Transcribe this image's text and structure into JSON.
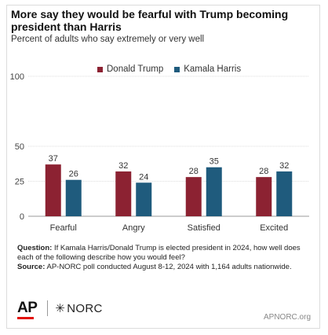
{
  "title": "More say they would be fearful with Trump becoming president than Harris",
  "subtitle": "Percent of adults who say extremely or very well",
  "footnote": {
    "question_label": "Question:",
    "question_text": " If Kamala Harris/Donald Trump is elected president in 2024, how well does each of the following describe how you would feel?",
    "source_label": "Source:",
    "source_text": " AP-NORC poll conducted August 8-12, 2024 with 1,164 adults nationwide."
  },
  "branding": {
    "ap": "AP",
    "norc": "NORC",
    "norc_star": "✳",
    "site": "APNORC.org"
  },
  "chart_data": {
    "type": "bar",
    "title": "More say they would be fearful with Trump becoming president than Harris",
    "subtitle": "Percent of adults who say extremely or very well",
    "categories": [
      "Fearful",
      "Angry",
      "Satisfied",
      "Excited"
    ],
    "series": [
      {
        "name": "Donald Trump",
        "color": "#8c2232",
        "values": [
          37,
          32,
          28,
          28
        ]
      },
      {
        "name": "Kamala Harris",
        "color": "#1f5b7d",
        "values": [
          26,
          24,
          35,
          32
        ]
      }
    ],
    "ylim": [
      0,
      100
    ],
    "yticks": [
      0,
      25,
      50,
      100
    ],
    "grid": true,
    "legend_position": "top",
    "data_labels": true
  }
}
